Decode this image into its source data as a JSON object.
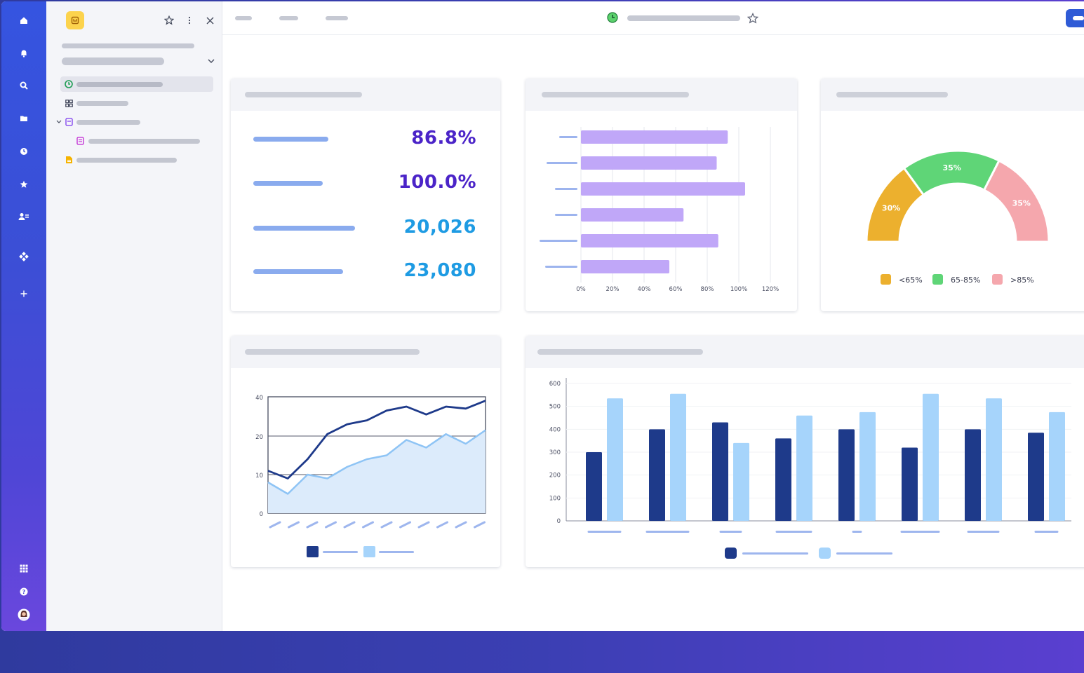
{
  "rail": {
    "top_icons": [
      "home-icon",
      "bell-icon",
      "search-icon",
      "folder-icon",
      "clock-icon",
      "star-icon",
      "team-icon",
      "integrations-icon",
      "plus-icon"
    ],
    "bottom_icons": [
      "apps-grid-icon",
      "help-icon",
      "avatar"
    ]
  },
  "sidebar": {
    "tree_icons": [
      "dashboard-icon",
      "grid-icon",
      "doc-icon",
      "form-icon",
      "file-icon"
    ]
  },
  "colors": {
    "kpi1": "#4b24c8",
    "kpi2": "#4b24c8",
    "kpi3": "#1e9be3",
    "kpi4": "#1e9be3",
    "bar_purple": "#c0a7f8",
    "dark_blue": "#1e3a8a",
    "light_blue": "#a6d4fb",
    "gauge_low": "#ecb02e",
    "gauge_mid": "#5fd577",
    "gauge_high": "#f5a7ad"
  },
  "kpis": [
    {
      "value": "86.8%"
    },
    {
      "value": "100.0%"
    },
    {
      "value": "20,026"
    },
    {
      "value": "23,080"
    }
  ],
  "chart_data": [
    {
      "type": "bar",
      "orientation": "horizontal",
      "categories": [
        "",
        "",
        "",
        "",
        "",
        ""
      ],
      "values": [
        93,
        86,
        104,
        65,
        87,
        56
      ],
      "xticks": [
        "0%",
        "20%",
        "40%",
        "60%",
        "80%",
        "100%",
        "120%"
      ],
      "xlim": [
        0,
        120
      ],
      "grid": "vertical"
    },
    {
      "type": "pie",
      "style": "half-donut gauge",
      "slices": [
        {
          "label": "<65%",
          "value": 30,
          "display": "30%"
        },
        {
          "label": "65-85%",
          "value": 35,
          "display": "35%"
        },
        {
          "label": ">85%",
          "value": 35,
          "display": "35%"
        }
      ],
      "legend": "bottom"
    },
    {
      "type": "line",
      "x": [
        0,
        1,
        2,
        3,
        4,
        5,
        6,
        7,
        8,
        9,
        10,
        11
      ],
      "series": [
        {
          "values": [
            11,
            9,
            14,
            21,
            26,
            28,
            33,
            35,
            31,
            35,
            34,
            38
          ]
        },
        {
          "values": [
            8,
            5,
            10,
            9,
            12,
            14,
            15,
            19,
            17,
            21,
            18,
            23
          ],
          "style": "area"
        }
      ],
      "yticks": [
        "0",
        "10",
        "20",
        "40"
      ],
      "grid": "horizontal",
      "legend": "bottom"
    },
    {
      "type": "bar",
      "categories": [
        "",
        "",
        "",
        "",
        "",
        "",
        "",
        ""
      ],
      "series": [
        {
          "values": [
            300,
            400,
            430,
            360,
            400,
            320,
            400,
            385
          ]
        },
        {
          "values": [
            535,
            555,
            340,
            460,
            475,
            555,
            535,
            475
          ]
        }
      ],
      "ylim": [
        0,
        600
      ],
      "yticks": [
        "0",
        "100",
        "200",
        "300",
        "400",
        "500",
        "600"
      ],
      "legend": "bottom"
    }
  ]
}
